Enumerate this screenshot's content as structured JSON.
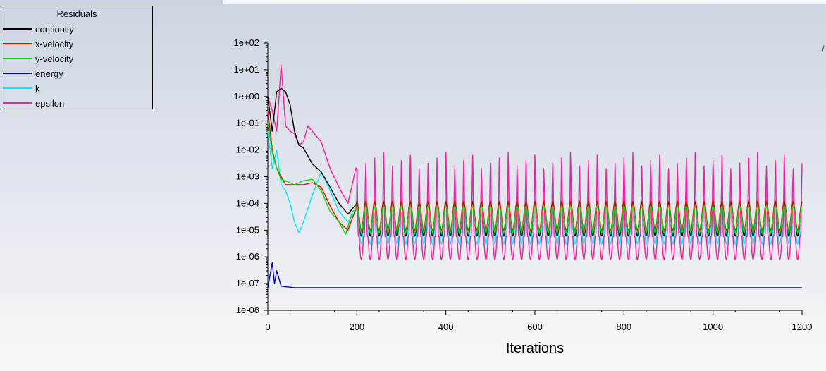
{
  "legend": {
    "title": "Residuals",
    "items": [
      {
        "label": "continuity",
        "color": "#000000"
      },
      {
        "label": "x-velocity",
        "color": "#ff0000"
      },
      {
        "label": "y-velocity",
        "color": "#00e000"
      },
      {
        "label": "energy",
        "color": "#0000d0"
      },
      {
        "label": "k",
        "color": "#00eaff"
      },
      {
        "label": "epsilon",
        "color": "#ff1a9a"
      }
    ]
  },
  "chart_data": {
    "type": "line",
    "xlabel": "Iterations",
    "ylabel": "",
    "xlim": [
      0,
      1200
    ],
    "ylim": [
      1e-08,
      100
    ],
    "y_scale": "log",
    "x_ticks": [
      0,
      200,
      400,
      600,
      800,
      1000,
      1200
    ],
    "y_tick_labels": [
      "1e-08",
      "1e-07",
      "1e-06",
      "1e-05",
      "1e-04",
      "1e-03",
      "1e-02",
      "1e-01",
      "1e+00",
      "1e+01",
      "1e+02"
    ],
    "periodic_region": {
      "start": 200,
      "end": 1200,
      "period": 20
    },
    "series": [
      {
        "name": "continuity",
        "color": "#000000",
        "initial": [
          [
            0,
            1.0
          ],
          [
            10,
            0.05
          ],
          [
            20,
            1.5
          ],
          [
            30,
            2.0
          ],
          [
            40,
            1.5
          ],
          [
            50,
            0.5
          ],
          [
            60,
            0.05
          ],
          [
            70,
            0.015
          ],
          [
            80,
            0.012
          ],
          [
            90,
            0.006
          ],
          [
            100,
            0.003
          ],
          [
            120,
            0.0015
          ],
          [
            140,
            0.0004
          ],
          [
            160,
            0.0001
          ],
          [
            180,
            4e-05
          ],
          [
            200,
            0.0001
          ]
        ],
        "periodic_high": 0.00011,
        "periodic_low": 6e-06
      },
      {
        "name": "x-velocity",
        "color": "#ff0000",
        "initial": [
          [
            0,
            0.3
          ],
          [
            10,
            0.01
          ],
          [
            20,
            0.002
          ],
          [
            40,
            0.0005
          ],
          [
            60,
            0.0005
          ],
          [
            80,
            0.0005
          ],
          [
            100,
            0.0006
          ],
          [
            120,
            0.0004
          ],
          [
            140,
            8e-05
          ],
          [
            160,
            2e-05
          ],
          [
            180,
            1e-05
          ],
          [
            200,
            8e-05
          ]
        ],
        "periodic_high": 0.00012,
        "periodic_low": 1e-05
      },
      {
        "name": "y-velocity",
        "color": "#00e000",
        "initial": [
          [
            0,
            0.1
          ],
          [
            10,
            0.008
          ],
          [
            20,
            0.002
          ],
          [
            30,
            0.0008
          ],
          [
            40,
            0.0007
          ],
          [
            60,
            0.0005
          ],
          [
            80,
            0.0007
          ],
          [
            100,
            0.0008
          ],
          [
            120,
            0.0003
          ],
          [
            140,
            5e-05
          ],
          [
            160,
            2e-05
          ],
          [
            175,
            7e-06
          ],
          [
            190,
            5e-05
          ],
          [
            200,
            6e-05
          ]
        ],
        "periodic_high": 8e-05,
        "periodic_low": 8e-06
      },
      {
        "name": "energy",
        "color": "#0000d0",
        "initial": [
          [
            0,
            7e-08
          ],
          [
            10,
            6e-07
          ],
          [
            15,
            1e-07
          ],
          [
            20,
            3e-07
          ],
          [
            30,
            8e-08
          ],
          [
            60,
            7e-08
          ],
          [
            1200,
            7e-08
          ]
        ],
        "periodic_high": null,
        "periodic_low": null
      },
      {
        "name": "k",
        "color": "#00eaff",
        "initial": [
          [
            0,
            0.05
          ],
          [
            10,
            0.002
          ],
          [
            20,
            0.01
          ],
          [
            30,
            0.0005
          ],
          [
            40,
            0.0003
          ],
          [
            50,
            0.0001
          ],
          [
            60,
            2e-05
          ],
          [
            70,
            8e-06
          ],
          [
            80,
            2e-05
          ],
          [
            100,
            0.0002
          ],
          [
            120,
            0.0015
          ],
          [
            140,
            0.0003
          ],
          [
            160,
            5e-05
          ],
          [
            180,
            2e-05
          ],
          [
            200,
            6e-05
          ]
        ],
        "periodic_high": 0.0015,
        "periodic_low": 3e-06
      },
      {
        "name": "epsilon",
        "color": "#ff1a9a",
        "initial": [
          [
            0,
            1.0
          ],
          [
            10,
            0.3
          ],
          [
            20,
            0.05
          ],
          [
            30,
            15.0
          ],
          [
            40,
            0.08
          ],
          [
            50,
            0.05
          ],
          [
            60,
            0.04
          ],
          [
            70,
            0.015
          ],
          [
            80,
            0.02
          ],
          [
            90,
            0.08
          ],
          [
            100,
            0.05
          ],
          [
            120,
            0.02
          ],
          [
            140,
            0.002
          ],
          [
            160,
            0.0004
          ],
          [
            180,
            0.0001
          ],
          [
            200,
            0.003
          ]
        ],
        "periodic_high": 0.002,
        "periodic_low": 8e-07
      }
    ]
  }
}
